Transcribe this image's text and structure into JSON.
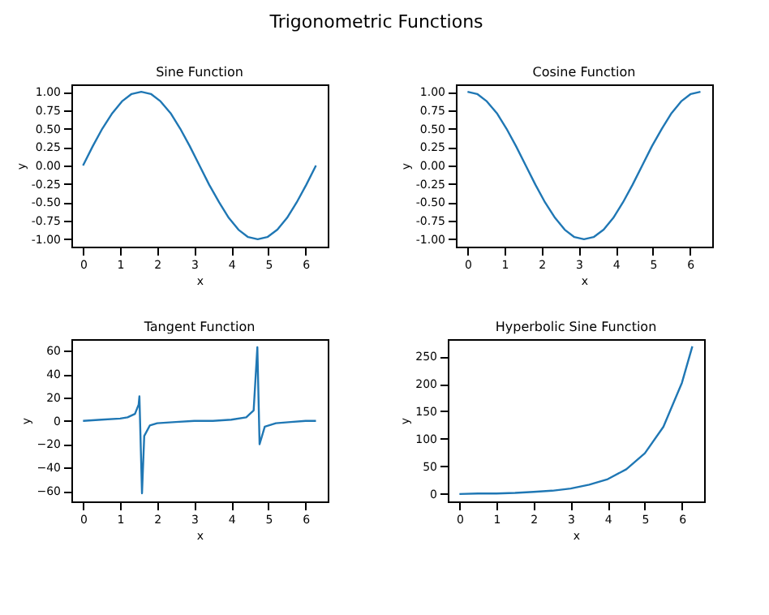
{
  "chart_data": [
    {
      "type": "other",
      "title": "Trigonometric Functions"
    },
    {
      "type": "line",
      "title": "Sine Function",
      "xlabel": "x",
      "ylabel": "y",
      "xlim": [
        -0.314,
        6.597
      ],
      "ylim": [
        -1.1,
        1.1
      ],
      "xticks": [
        0,
        1,
        2,
        3,
        4,
        5,
        6
      ],
      "yticks": [
        {
          "value": -1,
          "label": "-1.00"
        },
        {
          "value": -0.75,
          "label": "-0.75"
        },
        {
          "value": -0.5,
          "label": "-0.50"
        },
        {
          "value": -0.25,
          "label": "-0.25"
        },
        {
          "value": 0,
          "label": "0.00"
        },
        {
          "value": 0.25,
          "label": "0.25"
        },
        {
          "value": 0.5,
          "label": "0.50"
        },
        {
          "value": 0.75,
          "label": "0.75"
        },
        {
          "value": 1,
          "label": "1.00"
        }
      ],
      "x": [
        0,
        0.26,
        0.52,
        0.79,
        1.05,
        1.31,
        1.57,
        1.83,
        2.09,
        2.36,
        2.62,
        2.88,
        3.14,
        3.4,
        3.67,
        3.93,
        4.19,
        4.45,
        4.71,
        4.97,
        5.24,
        5.5,
        5.76,
        6.02,
        6.28
      ],
      "series": [
        {
          "color": "#1f77b4",
          "values": [
            0,
            0.26,
            0.5,
            0.71,
            0.87,
            0.97,
            1,
            0.97,
            0.87,
            0.71,
            0.5,
            0.26,
            0,
            -0.26,
            -0.5,
            -0.71,
            -0.87,
            -0.97,
            -1,
            -0.97,
            -0.87,
            -0.71,
            -0.5,
            -0.26,
            0
          ]
        }
      ]
    },
    {
      "type": "line",
      "title": "Cosine Function",
      "xlabel": "x",
      "ylabel": "y",
      "xlim": [
        -0.314,
        6.597
      ],
      "ylim": [
        -1.1,
        1.1
      ],
      "xticks": [
        0,
        1,
        2,
        3,
        4,
        5,
        6
      ],
      "yticks": [
        {
          "value": -1,
          "label": "-1.00"
        },
        {
          "value": -0.75,
          "label": "-0.75"
        },
        {
          "value": -0.5,
          "label": "-0.50"
        },
        {
          "value": -0.25,
          "label": "-0.25"
        },
        {
          "value": 0,
          "label": "0.00"
        },
        {
          "value": 0.25,
          "label": "0.25"
        },
        {
          "value": 0.5,
          "label": "0.50"
        },
        {
          "value": 0.75,
          "label": "0.75"
        },
        {
          "value": 1,
          "label": "1.00"
        }
      ],
      "x": [
        0,
        0.26,
        0.52,
        0.79,
        1.05,
        1.31,
        1.57,
        1.83,
        2.09,
        2.36,
        2.62,
        2.88,
        3.14,
        3.4,
        3.67,
        3.93,
        4.19,
        4.45,
        4.71,
        4.97,
        5.24,
        5.5,
        5.76,
        6.02,
        6.28
      ],
      "series": [
        {
          "color": "#1f77b4",
          "values": [
            1,
            0.97,
            0.87,
            0.71,
            0.5,
            0.26,
            0,
            -0.26,
            -0.5,
            -0.71,
            -0.87,
            -0.97,
            -1,
            -0.97,
            -0.87,
            -0.71,
            -0.5,
            -0.26,
            0,
            0.26,
            0.5,
            0.71,
            0.87,
            0.97,
            1
          ]
        }
      ]
    },
    {
      "type": "line",
      "title": "Tangent Function",
      "xlabel": "x",
      "ylabel": "y",
      "xlim": [
        -0.314,
        6.597
      ],
      "ylim": [
        -69,
        70
      ],
      "xticks": [
        0,
        1,
        2,
        3,
        4,
        5,
        6
      ],
      "yticks": [
        -60,
        -40,
        -20,
        0,
        20,
        40,
        60
      ],
      "x": [
        0,
        0.5,
        1.0,
        1.2,
        1.4,
        1.5,
        1.52,
        1.59,
        1.65,
        1.8,
        2.0,
        2.5,
        3.0,
        3.5,
        4.0,
        4.4,
        4.6,
        4.7,
        4.76,
        4.9,
        5.2,
        5.6,
        6.0,
        6.28
      ],
      "series": [
        {
          "color": "#1f77b4",
          "values": [
            0,
            1,
            2,
            3,
            6,
            14,
            21,
            -62,
            -13,
            -4,
            -2,
            -1,
            0,
            0,
            1,
            3,
            9,
            63,
            -20,
            -5,
            -2,
            -1,
            0,
            0
          ]
        }
      ]
    },
    {
      "type": "line",
      "title": "Hyperbolic Sine Function",
      "xlabel": "x",
      "ylabel": "y",
      "xlim": [
        -0.314,
        6.597
      ],
      "ylim": [
        -13.4,
        281
      ],
      "xticks": [
        0,
        1,
        2,
        3,
        4,
        5,
        6
      ],
      "yticks": [
        0,
        50,
        100,
        150,
        200,
        250
      ],
      "x": [
        0,
        0.5,
        1,
        1.5,
        2,
        2.5,
        3,
        3.5,
        4,
        4.5,
        5,
        5.5,
        6,
        6.28
      ],
      "series": [
        {
          "color": "#1f77b4",
          "values": [
            0,
            1,
            1,
            2,
            4,
            6,
            10,
            17,
            27,
            45,
            74,
            122,
            202,
            268
          ]
        }
      ]
    }
  ]
}
